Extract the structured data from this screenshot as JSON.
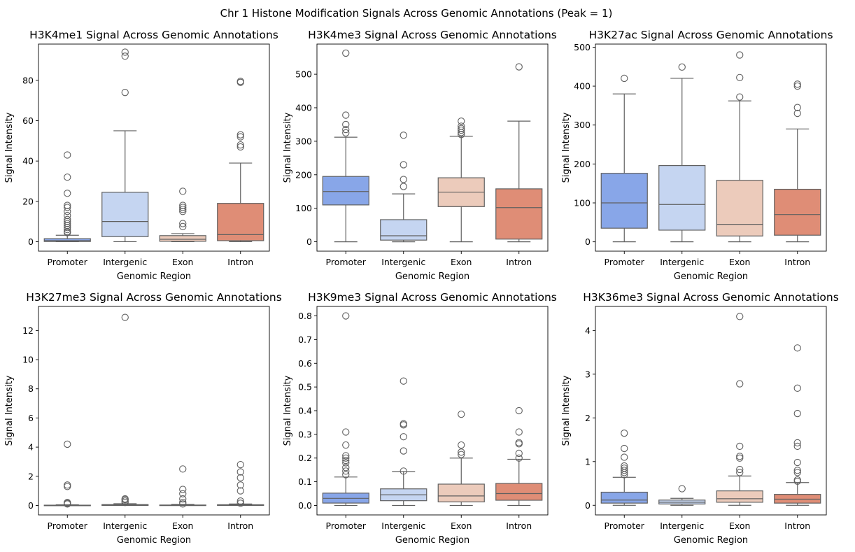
{
  "suptitle": "Chr 1 Histone Modification Signals Across Genomic Annotations (Peak = 1)",
  "palette": [
    "#88a6e8",
    "#c5d5f1",
    "#eccbbb",
    "#df8d76"
  ],
  "chart_data": [
    {
      "type": "box",
      "title": "H3K4me1 Signal Across Genomic Annotations",
      "xlabel": "Genomic Region",
      "ylabel": "Signal Intensity",
      "ylim": [
        -4.7,
        98
      ],
      "yticks": [
        0,
        20,
        40,
        60,
        80
      ],
      "categories": [
        "Promoter",
        "Intergenic",
        "Exon",
        "Intron"
      ],
      "boxes": [
        {
          "whislo": 0,
          "q1": 0.1,
          "med": 0.5,
          "q3": 1.5,
          "whishi": 3.2,
          "fliers": [
            4.5,
            5,
            6,
            7,
            8,
            9,
            10,
            11,
            13,
            15,
            17,
            18,
            24,
            32,
            43
          ]
        },
        {
          "whislo": 0,
          "q1": 2.5,
          "med": 10,
          "q3": 24.5,
          "whishi": 55,
          "fliers": [
            74,
            92,
            94
          ]
        },
        {
          "whislo": 0,
          "q1": 0.2,
          "med": 1.2,
          "q3": 3,
          "whishi": 4,
          "fliers": [
            7.5,
            9,
            15,
            16,
            17,
            18,
            25
          ]
        },
        {
          "whislo": 0,
          "q1": 0.5,
          "med": 3.5,
          "q3": 19,
          "whishi": 39,
          "fliers": [
            47,
            48,
            52,
            53,
            79,
            79.5
          ]
        }
      ]
    },
    {
      "type": "box",
      "title": "H3K4me3 Signal Across Genomic Annotations",
      "xlabel": "Genomic Region",
      "ylabel": "Signal Intensity",
      "ylim": [
        -28,
        590
      ],
      "yticks": [
        0,
        100,
        200,
        300,
        400,
        500
      ],
      "categories": [
        "Promoter",
        "Intergenic",
        "Exon",
        "Intron"
      ],
      "boxes": [
        {
          "whislo": 0,
          "q1": 110,
          "med": 150,
          "q3": 195,
          "whishi": 312,
          "fliers": [
            325,
            335,
            350,
            378,
            563
          ]
        },
        {
          "whislo": 0,
          "q1": 5,
          "med": 18,
          "q3": 66,
          "whishi": 143,
          "fliers": [
            165,
            186,
            230,
            318
          ]
        },
        {
          "whislo": 0,
          "q1": 105,
          "med": 148,
          "q3": 191,
          "whishi": 315,
          "fliers": [
            320,
            326,
            333,
            338,
            345,
            360
          ]
        },
        {
          "whislo": 0,
          "q1": 8,
          "med": 102,
          "q3": 158,
          "whishi": 360,
          "fliers": [
            522
          ]
        }
      ]
    },
    {
      "type": "box",
      "title": "H3K27ac Signal Across Genomic Annotations",
      "xlabel": "Genomic Region",
      "ylabel": "Signal Intensity",
      "ylim": [
        -24,
        508
      ],
      "yticks": [
        0,
        100,
        200,
        300,
        400,
        500
      ],
      "categories": [
        "Promoter",
        "Intergenic",
        "Exon",
        "Intron"
      ],
      "boxes": [
        {
          "whislo": 0,
          "q1": 35,
          "med": 100,
          "q3": 176,
          "whishi": 380,
          "fliers": [
            420
          ]
        },
        {
          "whislo": 0,
          "q1": 30,
          "med": 96,
          "q3": 196,
          "whishi": 420,
          "fliers": [
            449
          ]
        },
        {
          "whislo": 0,
          "q1": 15,
          "med": 45,
          "q3": 158,
          "whishi": 362,
          "fliers": [
            372,
            422,
            480
          ]
        },
        {
          "whislo": 0,
          "q1": 17,
          "med": 70,
          "q3": 135,
          "whishi": 290,
          "fliers": [
            330,
            345,
            400,
            405
          ]
        }
      ]
    },
    {
      "type": "box",
      "title": "H3K27me3 Signal Across Genomic Annotations",
      "xlabel": "Genomic Region",
      "ylabel": "Signal Intensity",
      "ylim": [
        -0.65,
        13.65
      ],
      "yticks": [
        0,
        2,
        4,
        6,
        8,
        10,
        12
      ],
      "categories": [
        "Promoter",
        "Intergenic",
        "Exon",
        "Intron"
      ],
      "boxes": [
        {
          "whislo": 0,
          "q1": 0,
          "med": 0,
          "q3": 0.02,
          "whishi": 0.05,
          "fliers": [
            0.1,
            0.15,
            0.2,
            1.3,
            1.4,
            4.2
          ]
        },
        {
          "whislo": 0,
          "q1": 0,
          "med": 0.02,
          "q3": 0.06,
          "whishi": 0.12,
          "fliers": [
            0.2,
            0.3,
            0.4,
            0.45,
            12.9
          ]
        },
        {
          "whislo": 0,
          "q1": 0,
          "med": 0.01,
          "q3": 0.03,
          "whishi": 0.07,
          "fliers": [
            0.1,
            0.2,
            0.45,
            0.8,
            1.1,
            2.5
          ]
        },
        {
          "whislo": 0,
          "q1": 0,
          "med": 0.02,
          "q3": 0.05,
          "whishi": 0.1,
          "fliers": [
            0.15,
            0.3,
            1.0,
            1.4,
            1.9,
            2.3,
            2.8
          ]
        }
      ]
    },
    {
      "type": "box",
      "title": "H3K9me3 Signal Across Genomic Annotations",
      "xlabel": "Genomic Region",
      "ylabel": "Signal Intensity",
      "ylim": [
        -0.04,
        0.84
      ],
      "yticks": [
        0.0,
        0.1,
        0.2,
        0.3,
        0.4,
        0.5,
        0.6,
        0.7,
        0.8
      ],
      "categories": [
        "Promoter",
        "Intergenic",
        "Exon",
        "Intron"
      ],
      "boxes": [
        {
          "whislo": 0,
          "q1": 0.01,
          "med": 0.03,
          "q3": 0.052,
          "whishi": 0.12,
          "fliers": [
            0.13,
            0.145,
            0.16,
            0.18,
            0.19,
            0.2,
            0.21,
            0.255,
            0.31,
            0.8
          ]
        },
        {
          "whislo": 0,
          "q1": 0.02,
          "med": 0.045,
          "q3": 0.07,
          "whishi": 0.143,
          "fliers": [
            0.145,
            0.23,
            0.29,
            0.34,
            0.345,
            0.525
          ]
        },
        {
          "whislo": 0,
          "q1": 0.015,
          "med": 0.04,
          "q3": 0.09,
          "whishi": 0.2,
          "fliers": [
            0.215,
            0.225,
            0.255,
            0.385
          ]
        },
        {
          "whislo": 0,
          "q1": 0.022,
          "med": 0.05,
          "q3": 0.093,
          "whishi": 0.195,
          "fliers": [
            0.2,
            0.22,
            0.26,
            0.265,
            0.31,
            0.4
          ]
        }
      ]
    },
    {
      "type": "box",
      "title": "H3K36me3 Signal Across Genomic Annotations",
      "xlabel": "Genomic Region",
      "ylabel": "Signal Intensity",
      "ylim": [
        -0.22,
        4.55
      ],
      "yticks": [
        0,
        1,
        2,
        3,
        4
      ],
      "categories": [
        "Promoter",
        "Intergenic",
        "Exon",
        "Intron"
      ],
      "boxes": [
        {
          "whislo": 0,
          "q1": 0.05,
          "med": 0.12,
          "q3": 0.3,
          "whishi": 0.64,
          "fliers": [
            0.7,
            0.75,
            0.8,
            0.85,
            0.9,
            1.1,
            1.3,
            1.65
          ]
        },
        {
          "whislo": 0,
          "q1": 0.03,
          "med": 0.07,
          "q3": 0.12,
          "whishi": 0.16,
          "fliers": [
            0.38
          ]
        },
        {
          "whislo": 0,
          "q1": 0.07,
          "med": 0.15,
          "q3": 0.33,
          "whishi": 0.67,
          "fliers": [
            0.75,
            0.82,
            1.08,
            1.12,
            1.35,
            2.78,
            4.32
          ]
        },
        {
          "whislo": 0,
          "q1": 0.05,
          "med": 0.14,
          "q3": 0.25,
          "whishi": 0.52,
          "fliers": [
            0.55,
            0.58,
            0.75,
            0.8,
            0.98,
            1.35,
            1.43,
            2.1,
            2.68,
            3.6
          ]
        }
      ]
    }
  ]
}
